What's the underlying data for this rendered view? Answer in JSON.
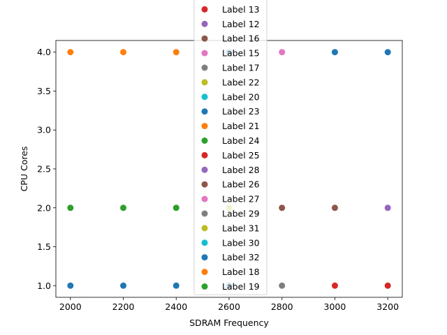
{
  "chart_data": {
    "type": "scatter",
    "xlabel": "SDRAM Frequency",
    "ylabel": "CPU Cores",
    "xlim": [
      1945,
      3255
    ],
    "ylim": [
      0.85,
      4.15
    ],
    "xticks": [
      2000,
      2200,
      2400,
      2600,
      2800,
      3000,
      3200
    ],
    "yticks": [
      1.0,
      1.5,
      2.0,
      2.5,
      3.0,
      3.5,
      4.0
    ],
    "grid": false,
    "legend_placement": "top-center",
    "series": [
      {
        "name": "Label 13",
        "color": "#d62728",
        "points": []
      },
      {
        "name": "Label 12",
        "color": "#9467bd",
        "points": []
      },
      {
        "name": "Label 16",
        "color": "#8c564b",
        "points": []
      },
      {
        "name": "Label 15",
        "color": "#e377c2",
        "points": [
          [
            2800,
            4
          ]
        ]
      },
      {
        "name": "Label 17",
        "color": "#7f7f7f",
        "points": []
      },
      {
        "name": "Label 22",
        "color": "#bcbd22",
        "points": [
          [
            2600,
            2
          ]
        ]
      },
      {
        "name": "Label 20",
        "color": "#17becf",
        "points": []
      },
      {
        "name": "Label 23",
        "color": "#1f77b4",
        "points": [
          [
            2600,
            4
          ],
          [
            3000,
            4
          ],
          [
            3200,
            4
          ]
        ]
      },
      {
        "name": "Label 21",
        "color": "#ff7f0e",
        "points": [
          [
            2000,
            4
          ],
          [
            2200,
            4
          ],
          [
            2400,
            4
          ]
        ]
      },
      {
        "name": "Label 24",
        "color": "#2ca02c",
        "points": []
      },
      {
        "name": "Label 25",
        "color": "#d62728",
        "points": [
          [
            3000,
            1
          ],
          [
            3200,
            1
          ]
        ]
      },
      {
        "name": "Label 28",
        "color": "#9467bd",
        "points": [
          [
            3200,
            2
          ]
        ]
      },
      {
        "name": "Label 26",
        "color": "#8c564b",
        "points": [
          [
            2800,
            2
          ],
          [
            3000,
            2
          ]
        ]
      },
      {
        "name": "Label 27",
        "color": "#e377c2",
        "points": []
      },
      {
        "name": "Label 29",
        "color": "#7f7f7f",
        "points": [
          [
            2800,
            1
          ]
        ]
      },
      {
        "name": "Label 31",
        "color": "#bcbd22",
        "points": []
      },
      {
        "name": "Label 30",
        "color": "#17becf",
        "points": []
      },
      {
        "name": "Label 32",
        "color": "#1f77b4",
        "points": [
          [
            2000,
            1
          ],
          [
            2200,
            1
          ],
          [
            2400,
            1
          ],
          [
            2600,
            1
          ]
        ]
      },
      {
        "name": "Label 18",
        "color": "#ff7f0e",
        "points": []
      },
      {
        "name": "Label 19",
        "color": "#2ca02c",
        "points": [
          [
            2000,
            2
          ],
          [
            2200,
            2
          ],
          [
            2400,
            2
          ]
        ]
      }
    ]
  }
}
